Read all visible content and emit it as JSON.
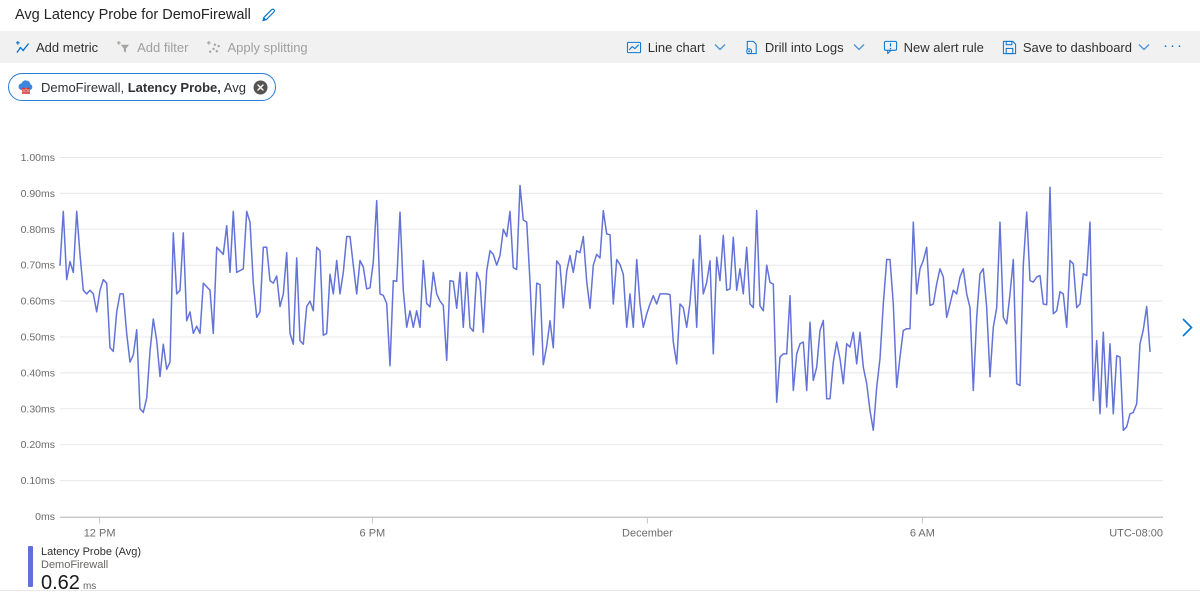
{
  "header": {
    "title": "Avg Latency Probe for DemoFirewall"
  },
  "toolbar": {
    "left": [
      {
        "label": "Add metric",
        "enabled": true,
        "icon": "add-metric-icon"
      },
      {
        "label": "Add filter",
        "enabled": false,
        "icon": "add-filter-icon"
      },
      {
        "label": "Apply splitting",
        "enabled": false,
        "icon": "apply-splitting-icon"
      }
    ],
    "right": [
      {
        "label": "Line chart",
        "enabled": true,
        "icon": "line-chart-icon",
        "has_dropdown": true
      },
      {
        "label": "Drill into Logs",
        "enabled": true,
        "icon": "drill-into-logs-icon",
        "has_dropdown": true
      },
      {
        "label": "New alert rule",
        "enabled": true,
        "icon": "new-alert-rule-icon",
        "has_dropdown": false
      },
      {
        "label": "Save to dashboard",
        "enabled": true,
        "icon": "save-to-dashboard-icon",
        "has_dropdown": true
      }
    ],
    "more_label": "···"
  },
  "metric_pill": {
    "resource": "DemoFirewall, ",
    "metric": "Latency Probe,",
    "aggregation": " Avg",
    "icon": "firewall-icon",
    "border_color": "#2a7cd4"
  },
  "legend": {
    "series_label": "Latency Probe (Avg)",
    "resource": "DemoFirewall",
    "value": "0.62",
    "unit": "ms",
    "color": "#5f71d8"
  },
  "chart_data": {
    "type": "line",
    "unit": "ms",
    "ylim": [
      0,
      1.0
    ],
    "grid": "horizontal",
    "legend_position": "bottom-left",
    "line_color": "#6373d8",
    "grid_color": "#e8e8e8",
    "axis_text_color": "#6b6b6b",
    "y_tick_labels": [
      "1.00ms",
      "0.90ms",
      "0.80ms",
      "0.70ms",
      "0.60ms",
      "0.50ms",
      "0.40ms",
      "0.30ms",
      "0.20ms",
      "0.10ms",
      "0ms"
    ],
    "x_ticks": [
      {
        "label": "12 PM",
        "t": 0.036
      },
      {
        "label": "6 PM",
        "t": 0.284
      },
      {
        "label": "December",
        "t": 0.534
      },
      {
        "label": "6 AM",
        "t": 0.784
      }
    ],
    "x_axis_right_label": "UTC-08:00",
    "series": [
      {
        "name": "Latency Probe (Avg)",
        "resource": "DemoFirewall",
        "aggregation": "Avg",
        "color": "#6373d8",
        "values": [
          0.7,
          0.85,
          0.66,
          0.71,
          0.68,
          0.85,
          0.73,
          0.63,
          0.62,
          0.63,
          0.62,
          0.57,
          0.63,
          0.66,
          0.65,
          0.47,
          0.46,
          0.57,
          0.62,
          0.62,
          0.51,
          0.43,
          0.45,
          0.52,
          0.3,
          0.29,
          0.33,
          0.46,
          0.55,
          0.49,
          0.39,
          0.48,
          0.41,
          0.43,
          0.79,
          0.62,
          0.63,
          0.79,
          0.545,
          0.57,
          0.51,
          0.53,
          0.51,
          0.65,
          0.64,
          0.63,
          0.51,
          0.75,
          0.74,
          0.73,
          0.81,
          0.68,
          0.85,
          0.68,
          0.685,
          0.69,
          0.85,
          0.82,
          0.65,
          0.555,
          0.57,
          0.75,
          0.75,
          0.657,
          0.65,
          0.67,
          0.585,
          0.62,
          0.735,
          0.51,
          0.48,
          0.72,
          0.49,
          0.48,
          0.585,
          0.6,
          0.573,
          0.75,
          0.74,
          0.505,
          0.51,
          0.675,
          0.62,
          0.713,
          0.62,
          0.68,
          0.78,
          0.78,
          0.7,
          0.62,
          0.713,
          0.695,
          0.634,
          0.637,
          0.709,
          0.88,
          0.62,
          0.616,
          0.593,
          0.42,
          0.657,
          0.655,
          0.848,
          0.63,
          0.527,
          0.573,
          0.527,
          0.573,
          0.527,
          0.713,
          0.593,
          0.584,
          0.68,
          0.62,
          0.6,
          0.588,
          0.435,
          0.657,
          0.655,
          0.58,
          0.68,
          0.527,
          0.68,
          0.527,
          0.516,
          0.68,
          0.655,
          0.513,
          0.684,
          0.74,
          0.73,
          0.7,
          0.727,
          0.8,
          0.78,
          0.85,
          0.693,
          0.688,
          0.922,
          0.826,
          0.82,
          0.655,
          0.45,
          0.65,
          0.646,
          0.423,
          0.474,
          0.545,
          0.47,
          0.712,
          0.7,
          0.581,
          0.683,
          0.727,
          0.68,
          0.74,
          0.735,
          0.78,
          0.655,
          0.58,
          0.7,
          0.73,
          0.72,
          0.852,
          0.787,
          0.785,
          0.592,
          0.716,
          0.702,
          0.675,
          0.527,
          0.62,
          0.527,
          0.716,
          0.592,
          0.527,
          0.564,
          0.592,
          0.615,
          0.592,
          0.62,
          0.62,
          0.62,
          0.618,
          0.486,
          0.425,
          0.592,
          0.582,
          0.527,
          0.596,
          0.716,
          0.527,
          0.783,
          0.62,
          0.652,
          0.712,
          0.453,
          0.722,
          0.657,
          0.783,
          0.63,
          0.634,
          0.778,
          0.63,
          0.69,
          0.62,
          0.75,
          0.592,
          0.582,
          0.852,
          0.587,
          0.573,
          0.7,
          0.652,
          0.647,
          0.318,
          0.444,
          0.453,
          0.453,
          0.615,
          0.351,
          0.453,
          0.481,
          0.486,
          0.351,
          0.541,
          0.379,
          0.416,
          0.518,
          0.546,
          0.328,
          0.328,
          0.43,
          0.486,
          0.439,
          0.37,
          0.481,
          0.472,
          0.513,
          0.425,
          0.513,
          0.416,
          0.37,
          0.295,
          0.24,
          0.36,
          0.44,
          0.592,
          0.716,
          0.716,
          0.592,
          0.36,
          0.444,
          0.518,
          0.523,
          0.523,
          0.82,
          0.62,
          0.69,
          0.713,
          0.75,
          0.588,
          0.592,
          0.648,
          0.69,
          0.667,
          0.555,
          0.592,
          0.63,
          0.62,
          0.667,
          0.69,
          0.62,
          0.582,
          0.351,
          0.555,
          0.676,
          0.69,
          0.582,
          0.389,
          0.527,
          0.582,
          0.82,
          0.555,
          0.537,
          0.62,
          0.716,
          0.37,
          0.365,
          0.7,
          0.848,
          0.657,
          0.653,
          0.667,
          0.671,
          0.592,
          0.59,
          0.917,
          0.565,
          0.573,
          0.626,
          0.62,
          0.527,
          0.713,
          0.704,
          0.582,
          0.592,
          0.676,
          0.671,
          0.82,
          0.323,
          0.49,
          0.286,
          0.513,
          0.305,
          0.481,
          0.286,
          0.448,
          0.444,
          0.24,
          0.25,
          0.286,
          0.29,
          0.314,
          0.481,
          0.52,
          0.585,
          0.46
        ]
      }
    ]
  }
}
